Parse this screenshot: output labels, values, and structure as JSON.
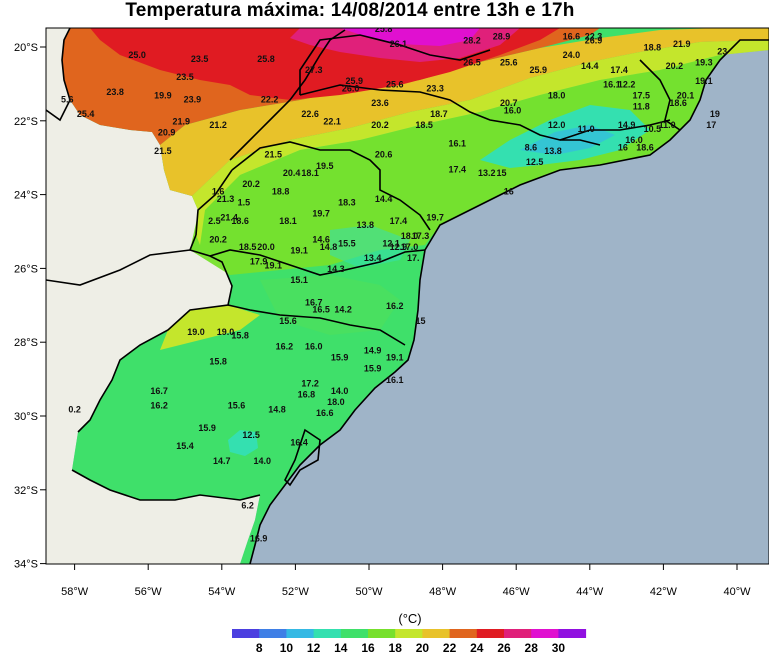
{
  "title": "Temperatura máxima: 14/08/2014 entre 13h e 17h",
  "unit_label": "(°C)",
  "colors": {
    "ocean": "#9fb4c8",
    "land_outside": "#eeeee6",
    "scale": [
      "#4b3fe0",
      "#3f7fe6",
      "#35b9e4",
      "#34e0b0",
      "#3fe06a",
      "#77e02c",
      "#c4e62c",
      "#e8c22a",
      "#e0651e",
      "#e01b22",
      "#e0207a",
      "#e010d0",
      "#9010e0"
    ]
  },
  "lat_ticks": [
    "20°S",
    "22°S",
    "24°S",
    "26°S",
    "28°S",
    "30°S",
    "32°S",
    "34°S"
  ],
  "lon_ticks": [
    "58°W",
    "56°W",
    "54°W",
    "52°W",
    "50°W",
    "48°W",
    "46°W",
    "44°W",
    "42°W",
    "40°W"
  ],
  "colorbar_labels": [
    "8",
    "10",
    "12",
    "14",
    "16",
    "18",
    "20",
    "22",
    "24",
    "26",
    "28",
    "30"
  ],
  "stations": [
    {
      "t": "25.8",
      "lon": -49.6,
      "lat": -19.6
    },
    {
      "t": "26.1",
      "lon": -49.2,
      "lat": -20.0
    },
    {
      "t": "28.2",
      "lon": -47.2,
      "lat": -19.9
    },
    {
      "t": "28.9",
      "lon": -46.4,
      "lat": -19.8
    },
    {
      "t": "27.0",
      "lon": -45.9,
      "lat": -19.4
    },
    {
      "t": "16.6",
      "lon": -44.5,
      "lat": -19.8
    },
    {
      "t": "22.3",
      "lon": -43.9,
      "lat": -19.8
    },
    {
      "t": "26.9",
      "lon": -43.9,
      "lat": -19.9
    },
    {
      "t": "22.6",
      "lon": -42.0,
      "lat": -19.3
    },
    {
      "t": "24.9",
      "lon": -41.4,
      "lat": -19.4
    },
    {
      "t": "25.0",
      "lon": -56.3,
      "lat": -20.3
    },
    {
      "t": "23.5",
      "lon": -54.6,
      "lat": -20.4
    },
    {
      "t": "25.8",
      "lon": -52.8,
      "lat": -20.4
    },
    {
      "t": "27.3",
      "lon": -51.5,
      "lat": -20.7
    },
    {
      "t": "26.5",
      "lon": -47.2,
      "lat": -20.5
    },
    {
      "t": "25.6",
      "lon": -46.2,
      "lat": -20.5
    },
    {
      "t": "25.9",
      "lon": -45.4,
      "lat": -20.7
    },
    {
      "t": "24.0",
      "lon": -44.5,
      "lat": -20.3
    },
    {
      "t": "18.8",
      "lon": -42.3,
      "lat": -20.1
    },
    {
      "t": "21.9",
      "lon": -41.5,
      "lat": -20.0
    },
    {
      "t": "23.5",
      "lon": -55.0,
      "lat": -20.9
    },
    {
      "t": "14.4",
      "lon": -44.0,
      "lat": -20.6
    },
    {
      "t": "17.4",
      "lon": -43.2,
      "lat": -20.7
    },
    {
      "t": "20.2",
      "lon": -41.7,
      "lat": -20.6
    },
    {
      "t": "19.3",
      "lon": -40.9,
      "lat": -20.5
    },
    {
      "t": "23",
      "lon": -40.4,
      "lat": -20.2
    },
    {
      "t": "25.9",
      "lon": -50.4,
      "lat": -21.0
    },
    {
      "t": "25.6",
      "lon": -49.3,
      "lat": -21.1
    },
    {
      "t": "26.0",
      "lon": -50.5,
      "lat": -21.2
    },
    {
      "t": "23.3",
      "lon": -48.2,
      "lat": -21.2
    },
    {
      "t": "16.1",
      "lon": -43.4,
      "lat": -21.1
    },
    {
      "t": "12.2",
      "lon": -43.0,
      "lat": -21.1
    },
    {
      "t": "19.1",
      "lon": -40.9,
      "lat": -21.0
    },
    {
      "t": "23.8",
      "lon": -56.9,
      "lat": -21.3
    },
    {
      "t": "19.9",
      "lon": -55.6,
      "lat": -21.4
    },
    {
      "t": "23.9",
      "lon": -54.8,
      "lat": -21.5
    },
    {
      "t": "22.2",
      "lon": -52.7,
      "lat": -21.5
    },
    {
      "t": "23.6",
      "lon": -49.7,
      "lat": -21.6
    },
    {
      "t": "20.7",
      "lon": -46.2,
      "lat": -21.6
    },
    {
      "t": "18.0",
      "lon": -44.9,
      "lat": -21.4
    },
    {
      "t": "17.5",
      "lon": -42.6,
      "lat": -21.4
    },
    {
      "t": "20.1",
      "lon": -41.4,
      "lat": -21.4
    },
    {
      "t": "11.8",
      "lon": -42.6,
      "lat": -21.7
    },
    {
      "t": "18.6",
      "lon": -41.6,
      "lat": -21.6
    },
    {
      "t": "16.0",
      "lon": -46.1,
      "lat": -21.8
    },
    {
      "t": "25.4",
      "lon": -57.7,
      "lat": -21.9
    },
    {
      "t": "21.9",
      "lon": -55.1,
      "lat": -22.1
    },
    {
      "t": "21.2",
      "lon": -54.1,
      "lat": -22.2
    },
    {
      "t": "22.6",
      "lon": -51.6,
      "lat": -21.9
    },
    {
      "t": "22.1",
      "lon": -51.0,
      "lat": -22.1
    },
    {
      "t": "20.2",
      "lon": -49.7,
      "lat": -22.2
    },
    {
      "t": "18.7",
      "lon": -48.1,
      "lat": -21.9
    },
    {
      "t": "18.5",
      "lon": -48.5,
      "lat": -22.2
    },
    {
      "t": "12.0",
      "lon": -44.9,
      "lat": -22.2
    },
    {
      "t": "11.0",
      "lon": -44.1,
      "lat": -22.3
    },
    {
      "t": "14.9",
      "lon": -43.0,
      "lat": -22.2
    },
    {
      "t": "10.5",
      "lon": -42.3,
      "lat": -22.3
    },
    {
      "t": "11.0",
      "lon": -41.9,
      "lat": -22.2
    },
    {
      "t": "17",
      "lon": -40.7,
      "lat": -22.2
    },
    {
      "t": "19",
      "lon": -40.6,
      "lat": -21.9
    },
    {
      "t": "20.9",
      "lon": -55.5,
      "lat": -22.4
    },
    {
      "t": "16.1",
      "lon": -47.6,
      "lat": -22.7
    },
    {
      "t": "8.6",
      "lon": -45.6,
      "lat": -22.8
    },
    {
      "t": "13.8",
      "lon": -45.0,
      "lat": -22.9
    },
    {
      "t": "16",
      "lon": -43.1,
      "lat": -22.8
    },
    {
      "t": "16.0",
      "lon": -42.8,
      "lat": -22.6
    },
    {
      "t": "18.6",
      "lon": -42.5,
      "lat": -22.8
    },
    {
      "t": "21.5",
      "lon": -55.6,
      "lat": -22.9
    },
    {
      "t": "21.5",
      "lon": -52.6,
      "lat": -23.0
    },
    {
      "t": "19.5",
      "lon": -51.2,
      "lat": -23.3
    },
    {
      "t": "20.6",
      "lon": -49.6,
      "lat": -23.0
    },
    {
      "t": "12.5",
      "lon": -45.5,
      "lat": -23.2
    },
    {
      "t": "20.4",
      "lon": -52.1,
      "lat": -23.5
    },
    {
      "t": "18.1",
      "lon": -51.6,
      "lat": -23.5
    },
    {
      "t": "17.4",
      "lon": -47.6,
      "lat": -23.4
    },
    {
      "t": "13.2",
      "lon": -46.8,
      "lat": -23.5
    },
    {
      "t": "15",
      "lon": -46.4,
      "lat": -23.5
    },
    {
      "t": "20.2",
      "lon": -53.2,
      "lat": -23.8
    },
    {
      "t": "18.8",
      "lon": -52.4,
      "lat": -24.0
    },
    {
      "t": "1.6",
      "lon": -54.1,
      "lat": -24.0
    },
    {
      "t": "16",
      "lon": -46.2,
      "lat": -24.0
    },
    {
      "t": "21.3",
      "lon": -53.9,
      "lat": -24.2
    },
    {
      "t": "1.5",
      "lon": -53.4,
      "lat": -24.3
    },
    {
      "t": "18.3",
      "lon": -50.6,
      "lat": -24.3
    },
    {
      "t": "14.4",
      "lon": -49.6,
      "lat": -24.2
    },
    {
      "t": "19.7",
      "lon": -51.3,
      "lat": -24.6
    },
    {
      "t": "19.7",
      "lon": -48.2,
      "lat": -24.7
    },
    {
      "t": "21.4",
      "lon": -53.8,
      "lat": -24.7
    },
    {
      "t": "18.6",
      "lon": -53.5,
      "lat": -24.8
    },
    {
      "t": "2.5",
      "lon": -54.2,
      "lat": -24.8
    },
    {
      "t": "18.1",
      "lon": -52.2,
      "lat": -24.8
    },
    {
      "t": "13.8",
      "lon": -50.1,
      "lat": -24.9
    },
    {
      "t": "17.4",
      "lon": -49.2,
      "lat": -24.8
    },
    {
      "t": "20.2",
      "lon": -54.1,
      "lat": -25.3
    },
    {
      "t": "14.6",
      "lon": -51.3,
      "lat": -25.3
    },
    {
      "t": "15.5",
      "lon": -50.6,
      "lat": -25.4
    },
    {
      "t": "18.0",
      "lon": -48.9,
      "lat": -25.2
    },
    {
      "t": "17.3",
      "lon": -48.6,
      "lat": -25.2
    },
    {
      "t": "18.5",
      "lon": -53.3,
      "lat": -25.5
    },
    {
      "t": "20.0",
      "lon": -52.8,
      "lat": -25.5
    },
    {
      "t": "19.1",
      "lon": -51.9,
      "lat": -25.6
    },
    {
      "t": "14.8",
      "lon": -51.1,
      "lat": -25.5
    },
    {
      "t": "12.1",
      "lon": -49.4,
      "lat": -25.4
    },
    {
      "t": "12.9",
      "lon": -49.2,
      "lat": -25.5
    },
    {
      "t": "17.0",
      "lon": -48.9,
      "lat": -25.5
    },
    {
      "t": "13.4",
      "lon": -49.9,
      "lat": -25.8
    },
    {
      "t": "17.",
      "lon": -48.8,
      "lat": -25.8
    },
    {
      "t": "17.9",
      "lon": -53.0,
      "lat": -25.9
    },
    {
      "t": "19.1",
      "lon": -52.6,
      "lat": -26.0
    },
    {
      "t": "14.3",
      "lon": -50.9,
      "lat": -26.1
    },
    {
      "t": "15.1",
      "lon": -51.9,
      "lat": -26.4
    },
    {
      "t": "16.7",
      "lon": -51.5,
      "lat": -27.0
    },
    {
      "t": "14.2",
      "lon": -50.7,
      "lat": -27.2
    },
    {
      "t": "16.5",
      "lon": -51.3,
      "lat": -27.2
    },
    {
      "t": "16.2",
      "lon": -49.3,
      "lat": -27.1
    },
    {
      "t": "15.6",
      "lon": -52.2,
      "lat": -27.5
    },
    {
      "t": "15",
      "lon": -48.6,
      "lat": -27.5
    },
    {
      "t": "19.0",
      "lon": -54.7,
      "lat": -27.8
    },
    {
      "t": "19.0",
      "lon": -53.9,
      "lat": -27.8
    },
    {
      "t": "15.8",
      "lon": -53.5,
      "lat": -27.9
    },
    {
      "t": "16.2",
      "lon": -52.3,
      "lat": -28.2
    },
    {
      "t": "16.0",
      "lon": -51.5,
      "lat": -28.2
    },
    {
      "t": "14.9",
      "lon": -49.9,
      "lat": -28.3
    },
    {
      "t": "15.9",
      "lon": -50.8,
      "lat": -28.5
    },
    {
      "t": "19.1",
      "lon": -49.3,
      "lat": -28.5
    },
    {
      "t": "15.8",
      "lon": -54.1,
      "lat": -28.6
    },
    {
      "t": "15.9",
      "lon": -49.9,
      "lat": -28.8
    },
    {
      "t": "16.1",
      "lon": -49.3,
      "lat": -29.1
    },
    {
      "t": "17.2",
      "lon": -51.6,
      "lat": -29.2
    },
    {
      "t": "16.7",
      "lon": -55.7,
      "lat": -29.4
    },
    {
      "t": "16.8",
      "lon": -51.7,
      "lat": -29.5
    },
    {
      "t": "14.0",
      "lon": -50.8,
      "lat": -29.4
    },
    {
      "t": "16.2",
      "lon": -55.7,
      "lat": -29.8
    },
    {
      "t": "15.6",
      "lon": -53.6,
      "lat": -29.8
    },
    {
      "t": "18.0",
      "lon": -50.9,
      "lat": -29.7
    },
    {
      "t": "14.8",
      "lon": -52.5,
      "lat": -29.9
    },
    {
      "t": "16.6",
      "lon": -51.2,
      "lat": -30.0
    },
    {
      "t": "15.9",
      "lon": -54.4,
      "lat": -30.4
    },
    {
      "t": "12.5",
      "lon": -53.2,
      "lat": -30.6
    },
    {
      "t": "16.4",
      "lon": -51.9,
      "lat": -30.8
    },
    {
      "t": "15.4",
      "lon": -55.0,
      "lat": -30.9
    },
    {
      "t": "14.7",
      "lon": -54.0,
      "lat": -31.3
    },
    {
      "t": "14.0",
      "lon": -52.9,
      "lat": -31.3
    },
    {
      "t": "6.2",
      "lon": -53.3,
      "lat": -32.5
    },
    {
      "t": "16.9",
      "lon": -53.0,
      "lat": -33.4
    },
    {
      "t": "5.6",
      "lon": -58.2,
      "lat": -21.5
    },
    {
      "t": "0.2",
      "lon": -58.0,
      "lat": -29.9
    }
  ]
}
